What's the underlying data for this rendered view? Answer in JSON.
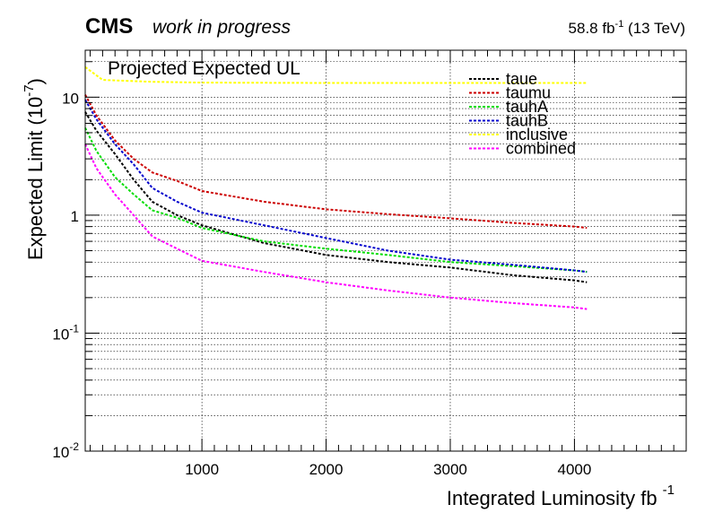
{
  "header": {
    "experiment": "CMS",
    "status": "work in progress",
    "lumi_value": "58.8 fb",
    "lumi_exp": "-1",
    "energy": " (13 TeV)"
  },
  "chart_data": {
    "type": "line",
    "title": "Projected Expected UL",
    "xlabel": "Integrated Luminosity fb",
    "xlabel_exp": "-1",
    "ylabel": "Expected Limit (10",
    "ylabel_exp": "-7",
    "ylabel_close": ")",
    "xlim": [
      60,
      4900
    ],
    "ylim": [
      0.01,
      25
    ],
    "yscale": "log",
    "grid": true,
    "legend_position": "top-right",
    "x_ticks": [
      1000,
      2000,
      3000,
      4000
    ],
    "x_tick_labels": [
      "1000",
      "2000",
      "3000",
      "4000"
    ],
    "y_ticks": [
      {
        "value": 0.01,
        "label": "10",
        "exp": "-2"
      },
      {
        "value": 0.1,
        "label": "10",
        "exp": "-1"
      },
      {
        "value": 1,
        "label": "1",
        "exp": ""
      },
      {
        "value": 10,
        "label": "10",
        "exp": ""
      }
    ],
    "series": [
      {
        "name": "taue",
        "color": "#000000",
        "x": [
          60,
          150,
          300,
          450,
          600,
          800,
          1000,
          1500,
          2000,
          2500,
          3000,
          3500,
          4000,
          4100
        ],
        "y": [
          7.5,
          5.2,
          3.3,
          2.0,
          1.3,
          1.0,
          0.82,
          0.58,
          0.46,
          0.4,
          0.36,
          0.31,
          0.28,
          0.27
        ]
      },
      {
        "name": "taumu",
        "color": "#cc0000",
        "x": [
          60,
          150,
          300,
          450,
          600,
          800,
          1000,
          1500,
          2000,
          2500,
          3000,
          3500,
          4000,
          4100
        ],
        "y": [
          10.5,
          7.0,
          4.3,
          3.0,
          2.3,
          1.95,
          1.6,
          1.3,
          1.12,
          1.02,
          0.94,
          0.86,
          0.8,
          0.78
        ]
      },
      {
        "name": "tauhA",
        "color": "#00dd00",
        "x": [
          60,
          150,
          300,
          450,
          600,
          800,
          1000,
          1500,
          2000,
          2500,
          3000,
          3500,
          4000,
          4100
        ],
        "y": [
          5.5,
          3.5,
          2.1,
          1.5,
          1.1,
          0.95,
          0.78,
          0.6,
          0.52,
          0.46,
          0.4,
          0.37,
          0.34,
          0.33
        ]
      },
      {
        "name": "tauhB",
        "color": "#0000cc",
        "x": [
          60,
          150,
          300,
          450,
          600,
          800,
          1000,
          1500,
          2000,
          2500,
          3000,
          3500,
          4000,
          4100
        ],
        "y": [
          9.5,
          6.5,
          4.0,
          2.7,
          1.7,
          1.3,
          1.05,
          0.82,
          0.64,
          0.5,
          0.42,
          0.38,
          0.34,
          0.33
        ]
      },
      {
        "name": "inclusive",
        "color": "#ffff00",
        "x": [
          60,
          200,
          600,
          1000,
          2000,
          3000,
          4000,
          4100
        ],
        "y": [
          18.0,
          14.0,
          13.5,
          13.3,
          13.2,
          13.2,
          13.2,
          13.2
        ]
      },
      {
        "name": "combined",
        "color": "#ff00ff",
        "x": [
          60,
          150,
          300,
          450,
          600,
          800,
          1000,
          1500,
          2000,
          2500,
          3000,
          3500,
          4000,
          4100
        ],
        "y": [
          4.0,
          2.5,
          1.5,
          1.0,
          0.66,
          0.52,
          0.41,
          0.33,
          0.27,
          0.23,
          0.2,
          0.18,
          0.165,
          0.16
        ]
      }
    ]
  }
}
